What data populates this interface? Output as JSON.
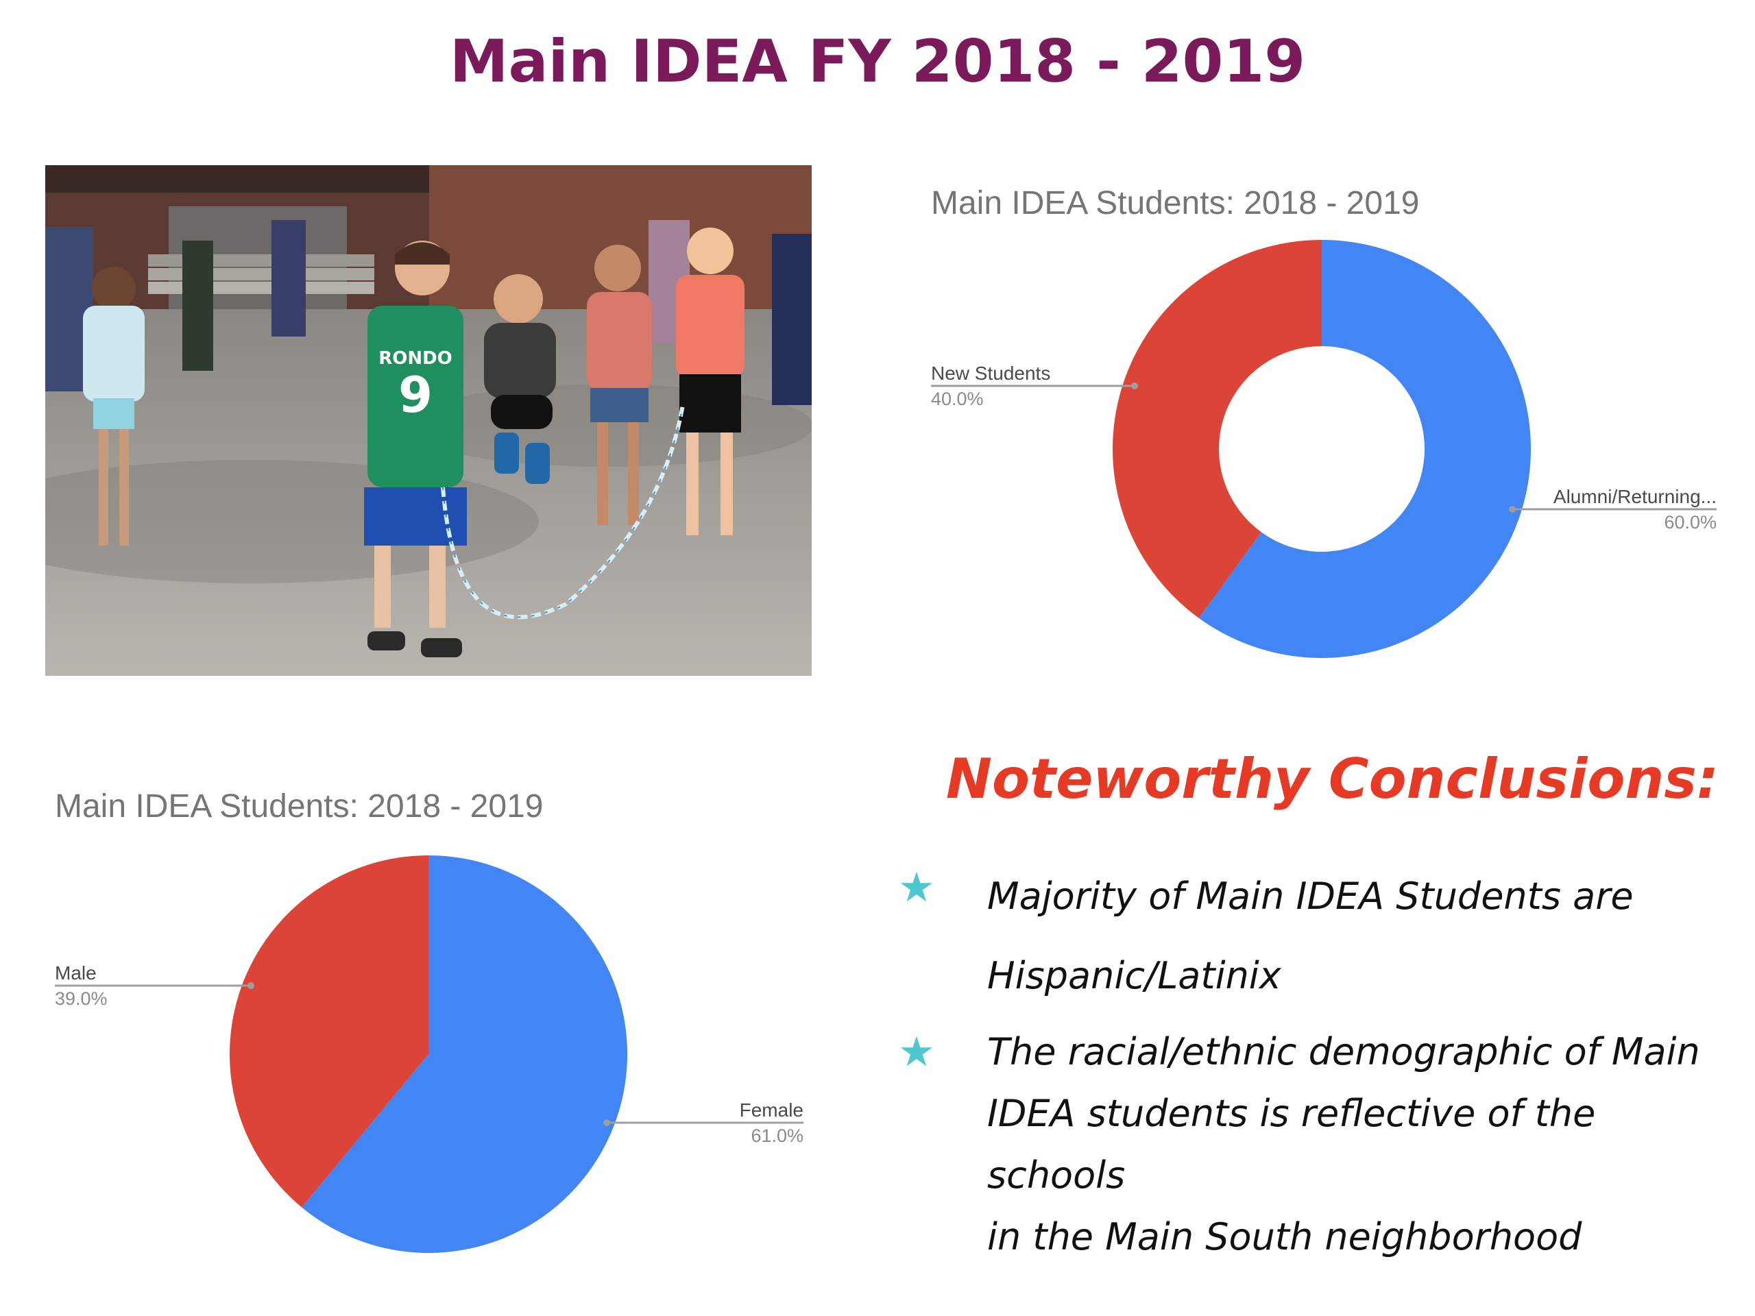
{
  "title": "Main IDEA FY 2018 - 2019",
  "photo": {
    "description_icon": "kids-jump-rope-photo",
    "jersey_name": "RONDO",
    "jersey_number": "9"
  },
  "chart_data": [
    {
      "type": "pie",
      "variant": "donut",
      "title": "Main IDEA Students: 2018 - 2019",
      "slices": [
        {
          "label": "Alumni/Returning...",
          "value": 60.0,
          "pct_label": "60.0%",
          "color": "#4285f4"
        },
        {
          "label": "New Students",
          "value": 40.0,
          "pct_label": "40.0%",
          "color": "#db4437"
        }
      ]
    },
    {
      "type": "pie",
      "variant": "pie",
      "title": "Main IDEA Students: 2018 - 2019",
      "slices": [
        {
          "label": "Female",
          "value": 61.0,
          "pct_label": "61.0%",
          "color": "#4285f4"
        },
        {
          "label": "Male",
          "value": 39.0,
          "pct_label": "39.0%",
          "color": "#db4437"
        }
      ]
    }
  ],
  "conclusions": {
    "heading": "Noteworthy Conclusions:",
    "star_color": "#4fc7cf",
    "items": [
      {
        "line1": "Majority of Main IDEA Students are",
        "line2": "Hispanic/Latinix"
      },
      {
        "line1": "The racial/ethnic demographic of Main",
        "line2": "IDEA students is reflective of the schools",
        "line3": "in the Main South neighborhood"
      }
    ]
  }
}
